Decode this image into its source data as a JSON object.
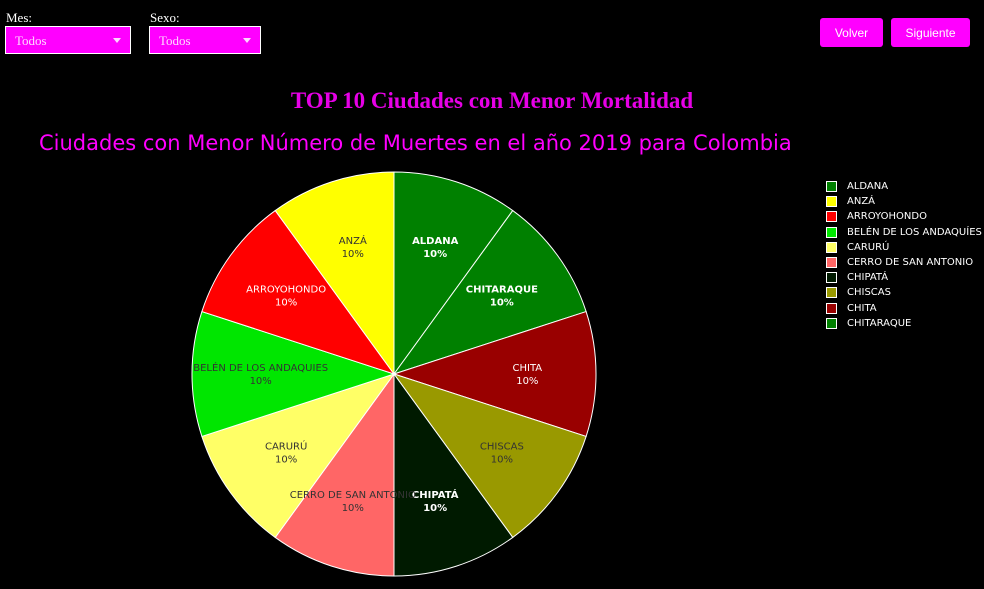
{
  "filters": {
    "month": {
      "label": "Mes:",
      "value": "Todos"
    },
    "sex": {
      "label": "Sexo:",
      "value": "Todos"
    }
  },
  "buttons": {
    "back": "Volver",
    "next": "Siguiente"
  },
  "heading": "TOP 10 Ciudades con Menor Mortalidad",
  "icons": {
    "dropdown": "chevron-down-icon"
  },
  "colors": {
    "accent": "#ff00ff"
  },
  "chart_data": {
    "type": "pie",
    "title": "Ciudades con Menor Número de Muertes en el año 2019 para Colombia",
    "legend_position": "right",
    "slices": [
      {
        "label": "ALDANA",
        "value": 10,
        "pct": "10%",
        "color": "#008000"
      },
      {
        "label": "CHITARAQUE",
        "value": 10,
        "pct": "10%",
        "color": "#008000"
      },
      {
        "label": "CHITA",
        "value": 10,
        "pct": "10%",
        "color": "#990000"
      },
      {
        "label": "CHISCAS",
        "value": 10,
        "pct": "10%",
        "color": "#999900"
      },
      {
        "label": "CHIPATÁ",
        "value": 10,
        "pct": "10%",
        "color": "#001a00"
      },
      {
        "label": "CERRO DE SAN ANTONIO",
        "value": 10,
        "pct": "10%",
        "color": "#ff6666"
      },
      {
        "label": "CARURÚ",
        "value": 10,
        "pct": "10%",
        "color": "#ffff66"
      },
      {
        "label": "BELÉN DE LOS ANDAQUIES",
        "value": 10,
        "pct": "10%",
        "color": "#00e600"
      },
      {
        "label": "ARROYOHONDO",
        "value": 10,
        "pct": "10%",
        "color": "#ff0000"
      },
      {
        "label": "ANZÁ",
        "value": 10,
        "pct": "10%",
        "color": "#ffff00"
      }
    ],
    "legend": [
      {
        "label": "ALDANA",
        "color": "#008000"
      },
      {
        "label": "ANZÁ",
        "color": "#ffff00"
      },
      {
        "label": "ARROYOHONDO",
        "color": "#ff0000"
      },
      {
        "label": "BELÉN DE LOS ANDAQUÍES",
        "color": "#00e600"
      },
      {
        "label": "CARURÚ",
        "color": "#ffff66"
      },
      {
        "label": "CERRO DE SAN ANTONIO",
        "color": "#ff6666"
      },
      {
        "label": "CHIPATÁ",
        "color": "#001a00"
      },
      {
        "label": "CHISCAS",
        "color": "#999900"
      },
      {
        "label": "CHITA",
        "color": "#990000"
      },
      {
        "label": "CHITARAQUE",
        "color": "#008000"
      }
    ]
  }
}
